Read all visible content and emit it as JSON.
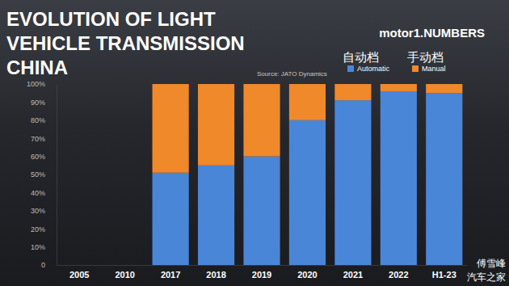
{
  "chart_data": {
    "type": "bar",
    "title": [
      "EVOLUTION OF LIGHT",
      "VEHICLE TRANSMISSION",
      "CHINA"
    ],
    "logo": "motor1.NUMBERS",
    "source": "Source: JATO Dynamics",
    "annotations": [
      "自动档",
      "手动档",
      "傅雪峰",
      "汽车之家"
    ],
    "categories": [
      "2005",
      "2010",
      "2017",
      "2018",
      "2019",
      "2020",
      "2021",
      "2022",
      "H1-23"
    ],
    "series": [
      {
        "name": "Automatic",
        "color": "#4a86d8",
        "values": [
          null,
          null,
          51,
          55,
          60,
          80,
          91,
          96,
          95
        ]
      },
      {
        "name": "Manual",
        "color": "#f0892a",
        "values": [
          null,
          null,
          49,
          45,
          40,
          20,
          9,
          4,
          5
        ]
      }
    ],
    "stacked": true,
    "ylim": [
      0,
      100
    ],
    "yticks": [
      0,
      {
        "value": 10,
        "label": "10%"
      },
      {
        "value": 20,
        "label": "20%"
      },
      {
        "value": 30,
        "label": "30%"
      },
      {
        "value": 40,
        "label": "40%"
      },
      {
        "value": 50,
        "label": "50%"
      },
      {
        "value": 60,
        "label": "60%"
      },
      {
        "value": 70,
        "label": "70%"
      },
      {
        "value": 80,
        "label": "80%"
      },
      {
        "value": 90,
        "label": "90%"
      },
      {
        "value": 100,
        "label": "100%"
      }
    ],
    "grid": false,
    "legend": "top-right"
  }
}
